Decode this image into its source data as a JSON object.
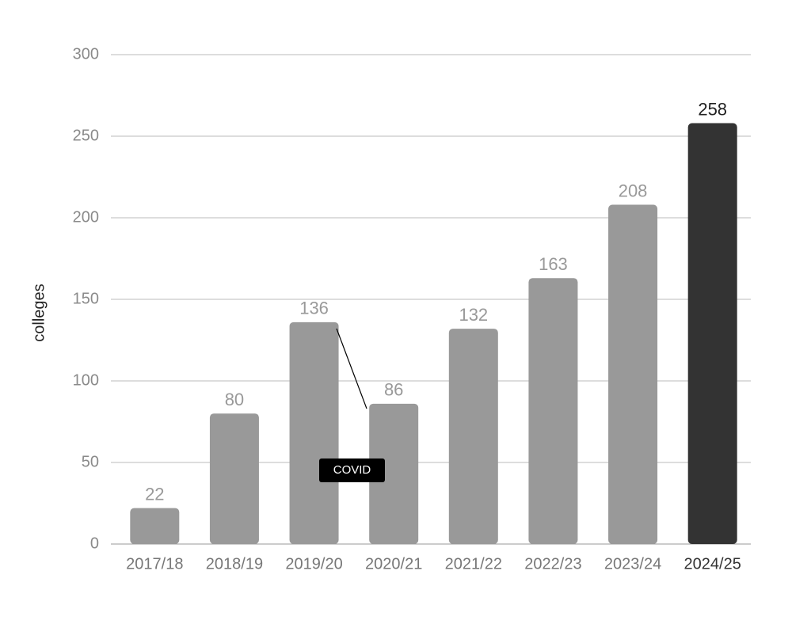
{
  "chart_data": {
    "type": "bar",
    "y_label": "colleges",
    "categories": [
      "2017/18",
      "2018/19",
      "2019/20",
      "2020/21",
      "2021/22",
      "2022/23",
      "2023/24",
      "2024/25"
    ],
    "values": [
      22,
      80,
      136,
      86,
      132,
      163,
      208,
      258
    ],
    "colors": [
      "#999999",
      "#999999",
      "#999999",
      "#999999",
      "#999999",
      "#999999",
      "#999999",
      "#333333"
    ],
    "ylim": [
      0,
      300
    ],
    "yticks": [
      0,
      50,
      100,
      150,
      200,
      250,
      300
    ],
    "grid": true,
    "annotations": [
      {
        "text": "COVID"
      }
    ]
  }
}
